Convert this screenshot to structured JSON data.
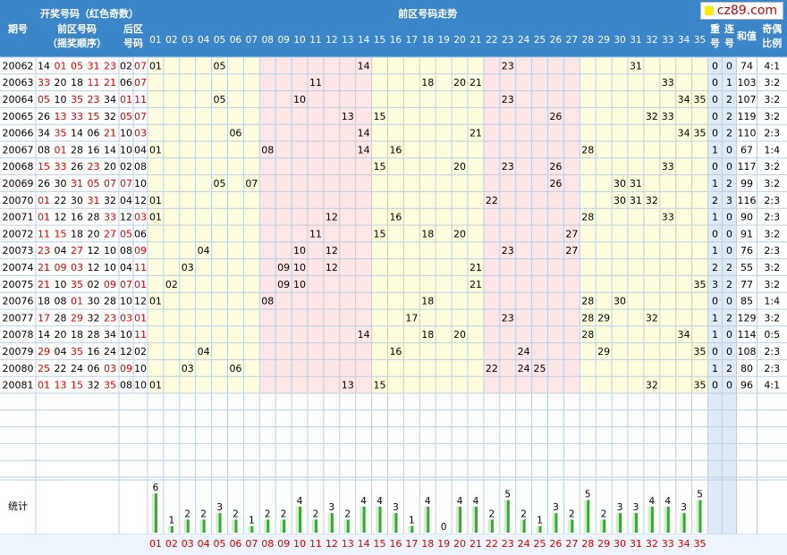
{
  "header": {
    "period": "期号",
    "draw_numbers": "开奖号码（红色奇数）",
    "front_numbers": "前区号码",
    "draw_order": "（摇奖顺序）",
    "back_numbers": "后区号码",
    "trend": "前区号码走势",
    "repeat": "重号",
    "consecutive": "连号",
    "sum": "和值",
    "odd_even_ratio": "奇偶比例"
  },
  "columns": [
    "01",
    "02",
    "03",
    "04",
    "05",
    "06",
    "07",
    "08",
    "09",
    "10",
    "11",
    "12",
    "13",
    "14",
    "15",
    "16",
    "17",
    "18",
    "19",
    "20",
    "21",
    "22",
    "23",
    "24",
    "25",
    "26",
    "27",
    "28",
    "29",
    "30",
    "31",
    "32",
    "33",
    "34",
    "35"
  ],
  "rows": [
    {
      "period": "20062",
      "front": [
        "14",
        "01",
        "05",
        "31",
        "23"
      ],
      "back": [
        "02",
        "07"
      ],
      "repeat": "0",
      "consecutive": "0",
      "sum": "74",
      "ratio": "4:1"
    },
    {
      "period": "20063",
      "front": [
        "33",
        "20",
        "18",
        "11",
        "21"
      ],
      "back": [
        "06",
        "07"
      ],
      "repeat": "0",
      "consecutive": "1",
      "sum": "103",
      "ratio": "3:2"
    },
    {
      "period": "20064",
      "front": [
        "05",
        "10",
        "35",
        "23",
        "34"
      ],
      "back": [
        "01",
        "11"
      ],
      "repeat": "0",
      "consecutive": "2",
      "sum": "107",
      "ratio": "3:2"
    },
    {
      "period": "20065",
      "front": [
        "26",
        "13",
        "33",
        "15",
        "32"
      ],
      "back": [
        "05",
        "07"
      ],
      "repeat": "0",
      "consecutive": "2",
      "sum": "119",
      "ratio": "3:2"
    },
    {
      "period": "20066",
      "front": [
        "34",
        "35",
        "14",
        "06",
        "21"
      ],
      "back": [
        "10",
        "03"
      ],
      "repeat": "0",
      "consecutive": "2",
      "sum": "110",
      "ratio": "2:3"
    },
    {
      "period": "20067",
      "front": [
        "08",
        "01",
        "28",
        "16",
        "14"
      ],
      "back": [
        "10",
        "04"
      ],
      "repeat": "1",
      "consecutive": "0",
      "sum": "67",
      "ratio": "1:4"
    },
    {
      "period": "20068",
      "front": [
        "15",
        "33",
        "26",
        "23",
        "20"
      ],
      "back": [
        "02",
        "08"
      ],
      "repeat": "0",
      "consecutive": "0",
      "sum": "117",
      "ratio": "3:2"
    },
    {
      "period": "20069",
      "front": [
        "26",
        "30",
        "31",
        "05",
        "07"
      ],
      "back": [
        "07",
        "10"
      ],
      "repeat": "1",
      "consecutive": "2",
      "sum": "99",
      "ratio": "3:2"
    },
    {
      "period": "20070",
      "front": [
        "01",
        "22",
        "30",
        "31",
        "32"
      ],
      "back": [
        "04",
        "12"
      ],
      "repeat": "2",
      "consecutive": "3",
      "sum": "116",
      "ratio": "2:3"
    },
    {
      "period": "20071",
      "front": [
        "01",
        "12",
        "16",
        "28",
        "33"
      ],
      "back": [
        "12",
        "03"
      ],
      "repeat": "1",
      "consecutive": "0",
      "sum": "90",
      "ratio": "2:3"
    },
    {
      "period": "20072",
      "front": [
        "11",
        "15",
        "18",
        "20",
        "27"
      ],
      "back": [
        "05",
        "06"
      ],
      "repeat": "0",
      "consecutive": "0",
      "sum": "91",
      "ratio": "3:2"
    },
    {
      "period": "20073",
      "front": [
        "23",
        "04",
        "27",
        "12",
        "10"
      ],
      "back": [
        "08",
        "09"
      ],
      "repeat": "1",
      "consecutive": "0",
      "sum": "76",
      "ratio": "2:3"
    },
    {
      "period": "20074",
      "front": [
        "21",
        "09",
        "03",
        "12",
        "10"
      ],
      "back": [
        "04",
        "11"
      ],
      "repeat": "2",
      "consecutive": "2",
      "sum": "55",
      "ratio": "3:2"
    },
    {
      "period": "20075",
      "front": [
        "21",
        "10",
        "35",
        "02",
        "09"
      ],
      "back": [
        "07",
        "01"
      ],
      "repeat": "3",
      "consecutive": "2",
      "sum": "77",
      "ratio": "3:2"
    },
    {
      "period": "20076",
      "front": [
        "18",
        "08",
        "01",
        "30",
        "28"
      ],
      "back": [
        "10",
        "12"
      ],
      "repeat": "0",
      "consecutive": "0",
      "sum": "85",
      "ratio": "1:4"
    },
    {
      "period": "20077",
      "front": [
        "17",
        "28",
        "29",
        "32",
        "23"
      ],
      "back": [
        "03",
        "01"
      ],
      "repeat": "1",
      "consecutive": "2",
      "sum": "129",
      "ratio": "3:2"
    },
    {
      "period": "20078",
      "front": [
        "14",
        "20",
        "18",
        "28",
        "34"
      ],
      "back": [
        "10",
        "11"
      ],
      "repeat": "1",
      "consecutive": "0",
      "sum": "114",
      "ratio": "0:5"
    },
    {
      "period": "20079",
      "front": [
        "29",
        "04",
        "35",
        "16",
        "24"
      ],
      "back": [
        "12",
        "02"
      ],
      "repeat": "0",
      "consecutive": "0",
      "sum": "108",
      "ratio": "2:3"
    },
    {
      "period": "20080",
      "front": [
        "25",
        "22",
        "24",
        "06",
        "03"
      ],
      "back": [
        "09",
        "10"
      ],
      "repeat": "1",
      "consecutive": "2",
      "sum": "80",
      "ratio": "2:3"
    },
    {
      "period": "20081",
      "front": [
        "01",
        "13",
        "15",
        "32",
        "35"
      ],
      "back": [
        "08",
        "10"
      ],
      "repeat": "0",
      "consecutive": "0",
      "sum": "96",
      "ratio": "4:1"
    }
  ],
  "stats": {
    "label": "统计",
    "counts": [
      6,
      1,
      2,
      2,
      3,
      2,
      1,
      2,
      2,
      4,
      2,
      3,
      2,
      4,
      4,
      3,
      1,
      4,
      0,
      4,
      4,
      2,
      5,
      2,
      1,
      3,
      2,
      5,
      2,
      3,
      3,
      4,
      4,
      3,
      5
    ]
  },
  "colors": {
    "header_bg": "#3a86c8",
    "odd_red": "#dd0000",
    "even_black": "#000000",
    "zone_pink": "#fde6e6",
    "zone_yellow": "#ffffe0",
    "stat_bar_light": "#cdeccd",
    "stat_bar_dark": "#33aa33",
    "grid_line": "#b9cfe4"
  },
  "logo": {
    "text": "cz89.com",
    "icon": "yellow-square-icon"
  }
}
